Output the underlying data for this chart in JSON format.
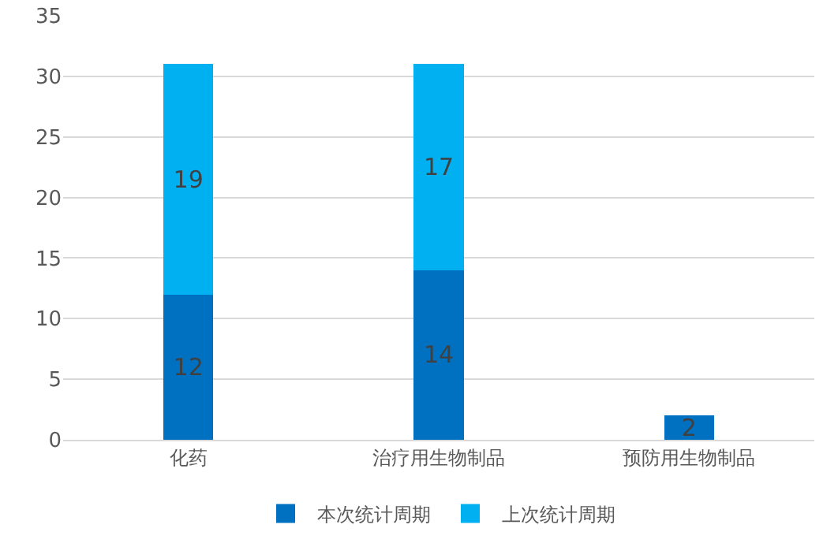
{
  "chart_data": {
    "type": "bar",
    "stacked": true,
    "categories": [
      "化药",
      "治疗用生物制品",
      "预防用生物制品"
    ],
    "series": [
      {
        "name": "本次统计周期",
        "color": "#0070c0",
        "values": [
          12,
          14,
          2
        ]
      },
      {
        "name": "上次统计周期",
        "color": "#00b0f0",
        "values": [
          19,
          17,
          null
        ]
      }
    ],
    "ylim": [
      0,
      35
    ],
    "yticks": [
      0,
      5,
      10,
      15,
      20,
      25,
      30,
      35
    ],
    "grid": "y",
    "legend": "bottom",
    "data_labels": true
  }
}
